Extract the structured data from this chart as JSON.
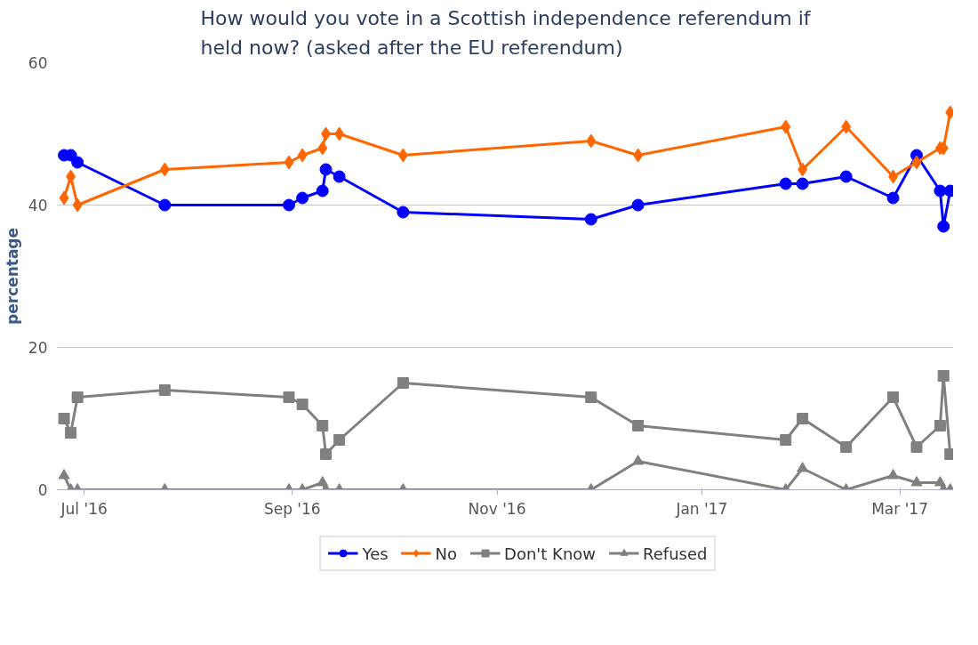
{
  "chart_data": {
    "type": "line",
    "title": "How would you vote in a Scottish independence referendum if held now? (asked after the EU referendum)",
    "ylabel": "percentage",
    "x": [
      "2016-06-25",
      "2016-06-27",
      "2016-06-29",
      "2016-07-25",
      "2016-08-31",
      "2016-09-04",
      "2016-09-10",
      "2016-09-11",
      "2016-09-15",
      "2016-10-04",
      "2016-11-29",
      "2016-12-13",
      "2017-01-26",
      "2017-01-31",
      "2017-02-13",
      "2017-02-27",
      "2017-03-06",
      "2017-03-13",
      "2017-03-14",
      "2017-03-16"
    ],
    "series": [
      {
        "name": "Yes",
        "color": "#0000ff",
        "marker": "circle",
        "values": [
          47,
          47,
          46,
          40,
          40,
          41,
          42,
          45,
          44,
          39,
          38,
          40,
          43,
          43,
          44,
          41,
          47,
          42,
          37,
          42
        ]
      },
      {
        "name": "No",
        "color": "#ff6600",
        "marker": "diamond",
        "values": [
          41,
          44,
          40,
          45,
          46,
          47,
          48,
          50,
          50,
          47,
          49,
          47,
          51,
          45,
          51,
          44,
          46,
          48,
          48,
          53
        ]
      },
      {
        "name": "Don't Know",
        "color": "#808080",
        "marker": "square",
        "values": [
          10,
          8,
          13,
          14,
          13,
          12,
          9,
          5,
          7,
          15,
          13,
          9,
          7,
          10,
          6,
          13,
          6,
          9,
          16,
          5
        ]
      },
      {
        "name": "Refused",
        "color": "#808080",
        "marker": "triangle",
        "values": [
          2,
          0,
          0,
          0,
          0,
          0,
          1,
          0,
          0,
          0,
          0,
          4,
          0,
          3,
          0,
          2,
          1,
          1,
          0,
          0
        ]
      }
    ],
    "xlim": [
      "2016-06-23",
      "2017-03-17"
    ],
    "xticks": [
      {
        "value": "2016-07-01",
        "label": "Jul '16"
      },
      {
        "value": "2016-09-01",
        "label": "Sep '16"
      },
      {
        "value": "2016-11-01",
        "label": "Nov '16"
      },
      {
        "value": "2017-01-01",
        "label": "Jan '17"
      },
      {
        "value": "2017-03-01",
        "label": "Mar '17"
      }
    ],
    "ylim": [
      0,
      60
    ],
    "yticks": [
      0,
      20,
      40,
      60
    ],
    "grid": "y",
    "legend": "bottom",
    "line_style": "solid"
  }
}
